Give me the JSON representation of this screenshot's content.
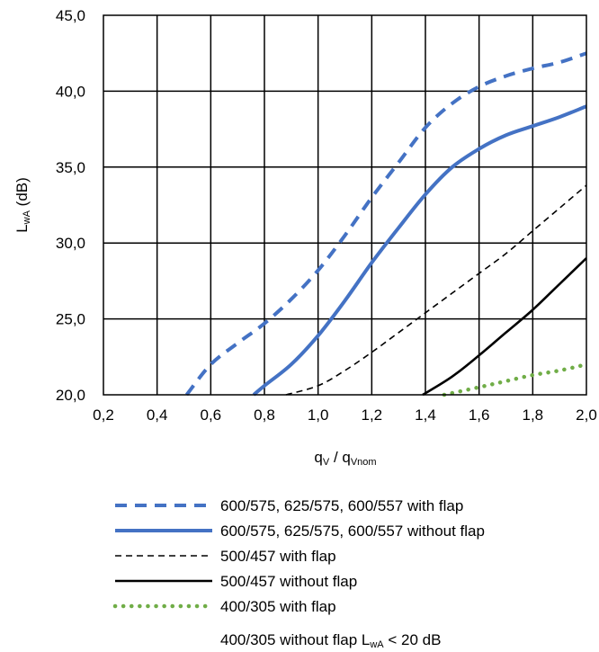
{
  "chart_data": {
    "type": "line",
    "title": "",
    "xlabel_main": "q",
    "xlabel_sub1": "V",
    "xlabel_mid": " / q",
    "xlabel_sub2": "Vnom",
    "ylabel_main": "L",
    "ylabel_sub": "wA",
    "ylabel_unit": " (dB)",
    "xlim": [
      0.2,
      2.0
    ],
    "ylim": [
      20.0,
      45.0
    ],
    "xticks": [
      "0,2",
      "0,4",
      "0,6",
      "0,8",
      "1,0",
      "1,2",
      "1,4",
      "1,6",
      "1,8",
      "2,0"
    ],
    "yticks": [
      "20,0",
      "25,0",
      "30,0",
      "35,0",
      "40,0",
      "45,0"
    ],
    "grid": true,
    "legend_position": "bottom",
    "series": [
      {
        "name": "600/575, 625/575, 600/557 with flap",
        "color": "#4472C4",
        "style": "dashed-thick",
        "x": [
          0.51,
          0.6,
          0.7,
          0.8,
          0.9,
          1.0,
          1.1,
          1.2,
          1.3,
          1.4,
          1.5,
          1.6,
          1.7,
          1.8,
          1.9,
          2.0
        ],
        "y": [
          20.0,
          22.0,
          23.4,
          24.7,
          26.3,
          28.2,
          30.5,
          33.0,
          35.3,
          37.6,
          39.2,
          40.3,
          41.0,
          41.5,
          41.9,
          42.5
        ]
      },
      {
        "name": "600/575, 625/575, 600/557 without flap",
        "color": "#4472C4",
        "style": "solid-thick",
        "x": [
          0.76,
          0.8,
          0.9,
          1.0,
          1.1,
          1.2,
          1.3,
          1.4,
          1.5,
          1.6,
          1.7,
          1.8,
          1.9,
          2.0
        ],
        "y": [
          20.0,
          20.6,
          22.0,
          23.9,
          26.2,
          28.7,
          31.0,
          33.2,
          35.0,
          36.2,
          37.1,
          37.7,
          38.3,
          39.0
        ]
      },
      {
        "name": "500/457 with flap",
        "color": "#000000",
        "style": "dashed-thin",
        "x": [
          0.88,
          1.0,
          1.1,
          1.2,
          1.3,
          1.4,
          1.5,
          1.6,
          1.7,
          1.8,
          1.9,
          2.0
        ],
        "y": [
          20.0,
          20.6,
          21.6,
          22.8,
          24.1,
          25.4,
          26.7,
          28.0,
          29.3,
          30.8,
          32.3,
          33.8
        ]
      },
      {
        "name": "500/457 without flap",
        "color": "#000000",
        "style": "solid",
        "x": [
          1.39,
          1.5,
          1.6,
          1.7,
          1.8,
          1.9,
          2.0
        ],
        "y": [
          20.0,
          21.2,
          22.6,
          24.1,
          25.6,
          27.3,
          29.0
        ]
      },
      {
        "name": "400/305 with flap",
        "color": "#70AD47",
        "style": "dotted",
        "x": [
          1.47,
          1.6,
          1.7,
          1.8,
          1.9,
          2.0
        ],
        "y": [
          20.0,
          20.5,
          20.9,
          21.3,
          21.6,
          22.0
        ]
      }
    ],
    "legend_note": {
      "prefix": "400/305 without flap L",
      "sub": "wA",
      "suffix": " < 20 dB"
    }
  }
}
